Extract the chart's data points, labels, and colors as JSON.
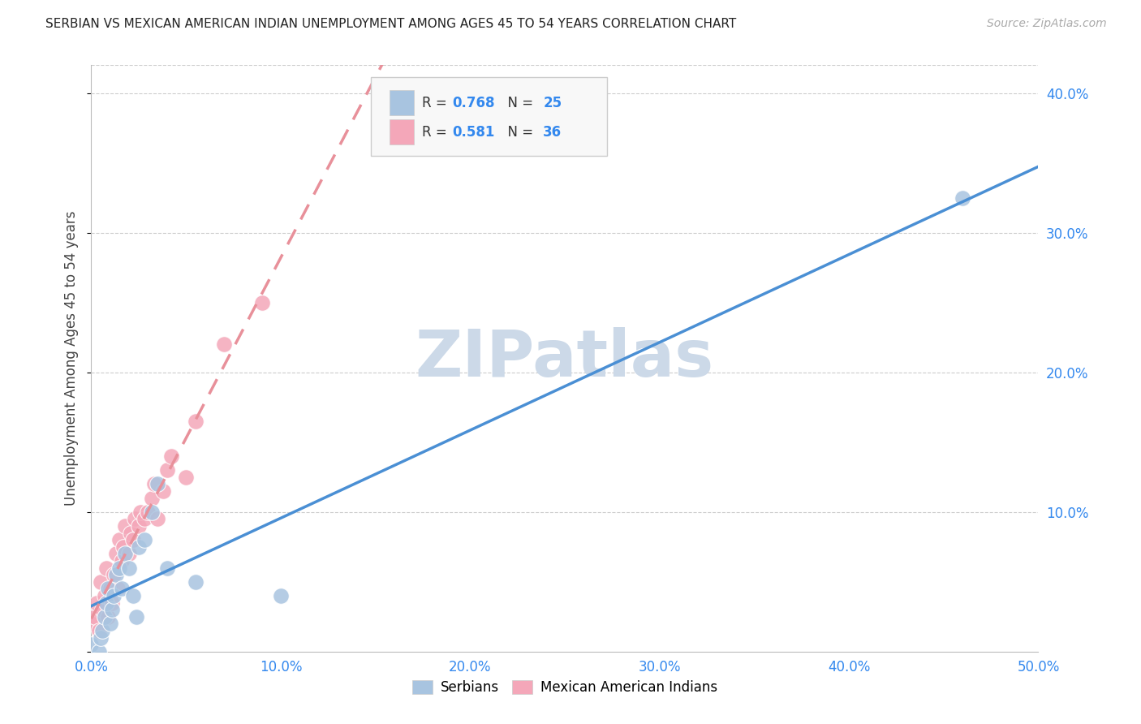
{
  "title": "SERBIAN VS MEXICAN AMERICAN INDIAN UNEMPLOYMENT AMONG AGES 45 TO 54 YEARS CORRELATION CHART",
  "source": "Source: ZipAtlas.com",
  "ylabel": "Unemployment Among Ages 45 to 54 years",
  "xlim": [
    0.0,
    0.5
  ],
  "ylim": [
    0.0,
    0.42
  ],
  "xticks": [
    0.0,
    0.1,
    0.2,
    0.3,
    0.4,
    0.5
  ],
  "yticks": [
    0.0,
    0.1,
    0.2,
    0.3,
    0.4
  ],
  "xtick_labels": [
    "0.0%",
    "10.0%",
    "20.0%",
    "30.0%",
    "40.0%",
    "50.0%"
  ],
  "ytick_labels_right": [
    "",
    "10.0%",
    "20.0%",
    "30.0%",
    "40.0%"
  ],
  "serbian_R": "0.768",
  "serbian_N": "25",
  "mexican_R": "0.581",
  "mexican_N": "36",
  "serbian_color": "#a8c4e0",
  "mexican_color": "#f4a7b9",
  "serbian_line_color": "#4a8fd4",
  "mexican_line_color": "#e8909a",
  "background_color": "#ffffff",
  "grid_color": "#cccccc",
  "watermark_text": "ZIPatlas",
  "watermark_color": "#ccd9e8",
  "serbian_x": [
    0.0,
    0.004,
    0.005,
    0.006,
    0.007,
    0.008,
    0.009,
    0.01,
    0.011,
    0.012,
    0.013,
    0.015,
    0.016,
    0.018,
    0.02,
    0.022,
    0.024,
    0.025,
    0.028,
    0.032,
    0.035,
    0.04,
    0.055,
    0.1,
    0.46
  ],
  "serbian_y": [
    0.005,
    0.0,
    0.01,
    0.015,
    0.025,
    0.035,
    0.045,
    0.02,
    0.03,
    0.04,
    0.055,
    0.06,
    0.045,
    0.07,
    0.06,
    0.04,
    0.025,
    0.075,
    0.08,
    0.1,
    0.12,
    0.06,
    0.05,
    0.04,
    0.325
  ],
  "mexican_x": [
    0.0,
    0.002,
    0.003,
    0.004,
    0.005,
    0.006,
    0.007,
    0.008,
    0.009,
    0.01,
    0.011,
    0.012,
    0.013,
    0.014,
    0.015,
    0.016,
    0.017,
    0.018,
    0.02,
    0.021,
    0.022,
    0.023,
    0.025,
    0.026,
    0.028,
    0.03,
    0.032,
    0.033,
    0.035,
    0.038,
    0.04,
    0.042,
    0.05,
    0.055,
    0.07,
    0.09
  ],
  "mexican_y": [
    0.02,
    0.025,
    0.035,
    0.015,
    0.05,
    0.03,
    0.04,
    0.06,
    0.025,
    0.045,
    0.035,
    0.055,
    0.07,
    0.045,
    0.08,
    0.065,
    0.075,
    0.09,
    0.07,
    0.085,
    0.08,
    0.095,
    0.09,
    0.1,
    0.095,
    0.1,
    0.11,
    0.12,
    0.095,
    0.115,
    0.13,
    0.14,
    0.125,
    0.165,
    0.22,
    0.25
  ],
  "legend_text_color": "#333333",
  "r_value_color": "#3388ee",
  "title_fontsize": 11,
  "source_fontsize": 10,
  "tick_fontsize": 12,
  "ylabel_fontsize": 12
}
